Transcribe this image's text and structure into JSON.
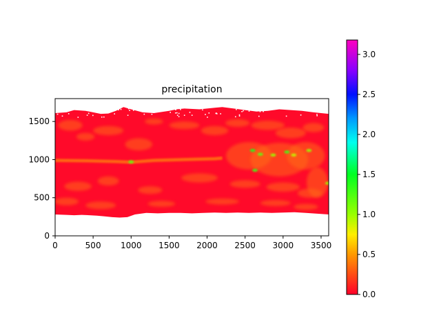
{
  "chart_data": {
    "type": "heatmap",
    "title": "precipitation",
    "xlabel": "",
    "ylabel": "",
    "xlim": [
      0,
      3600
    ],
    "ylim": [
      0,
      1800
    ],
    "x_ticks": [
      0,
      500,
      1000,
      1500,
      2000,
      2500,
      3000,
      3500
    ],
    "y_ticks": [
      0,
      500,
      1000,
      1500
    ],
    "data_extent": {
      "x": [
        0,
        3600
      ],
      "y": [
        240,
        1700
      ]
    },
    "colorbar": {
      "colormap": "gist_rainbow_r",
      "range": [
        0.0,
        3.18
      ],
      "ticks": [
        0.0,
        0.5,
        1.0,
        1.5,
        2.0,
        2.5,
        3.0
      ],
      "tick_labels": [
        "0.0",
        "0.5",
        "1.0",
        "1.5",
        "2.0",
        "2.5",
        "3.0"
      ],
      "stops": [
        {
          "value": 0.0,
          "color": "#ff0029"
        },
        {
          "value": 0.5,
          "color": "#ff9900"
        },
        {
          "value": 0.75,
          "color": "#ffee00"
        },
        {
          "value": 1.0,
          "color": "#99ff00"
        },
        {
          "value": 1.5,
          "color": "#00ff22"
        },
        {
          "value": 1.9,
          "color": "#00ffee"
        },
        {
          "value": 2.2,
          "color": "#0099ff"
        },
        {
          "value": 2.5,
          "color": "#0010ff"
        },
        {
          "value": 2.8,
          "color": "#8800ff"
        },
        {
          "value": 3.18,
          "color": "#ff00c0"
        }
      ]
    },
    "features": {
      "base_color": "#ff0a2a",
      "background": "#ffffff",
      "itcz_band": {
        "y_center": 990,
        "color": "#ff7a10"
      },
      "high_values": [
        {
          "x": 2600,
          "y": 1120,
          "value": 1.4
        },
        {
          "x": 2700,
          "y": 1070,
          "value": 1.2
        },
        {
          "x": 2870,
          "y": 1060,
          "value": 1.0
        },
        {
          "x": 3050,
          "y": 1100,
          "value": 1.3
        },
        {
          "x": 3140,
          "y": 1060,
          "value": 0.9
        },
        {
          "x": 3340,
          "y": 1120,
          "value": 1.0
        },
        {
          "x": 2630,
          "y": 860,
          "value": 1.3
        },
        {
          "x": 1000,
          "y": 970,
          "value": 1.2
        },
        {
          "x": 3590,
          "y": 690,
          "value": 1.0
        }
      ]
    }
  }
}
